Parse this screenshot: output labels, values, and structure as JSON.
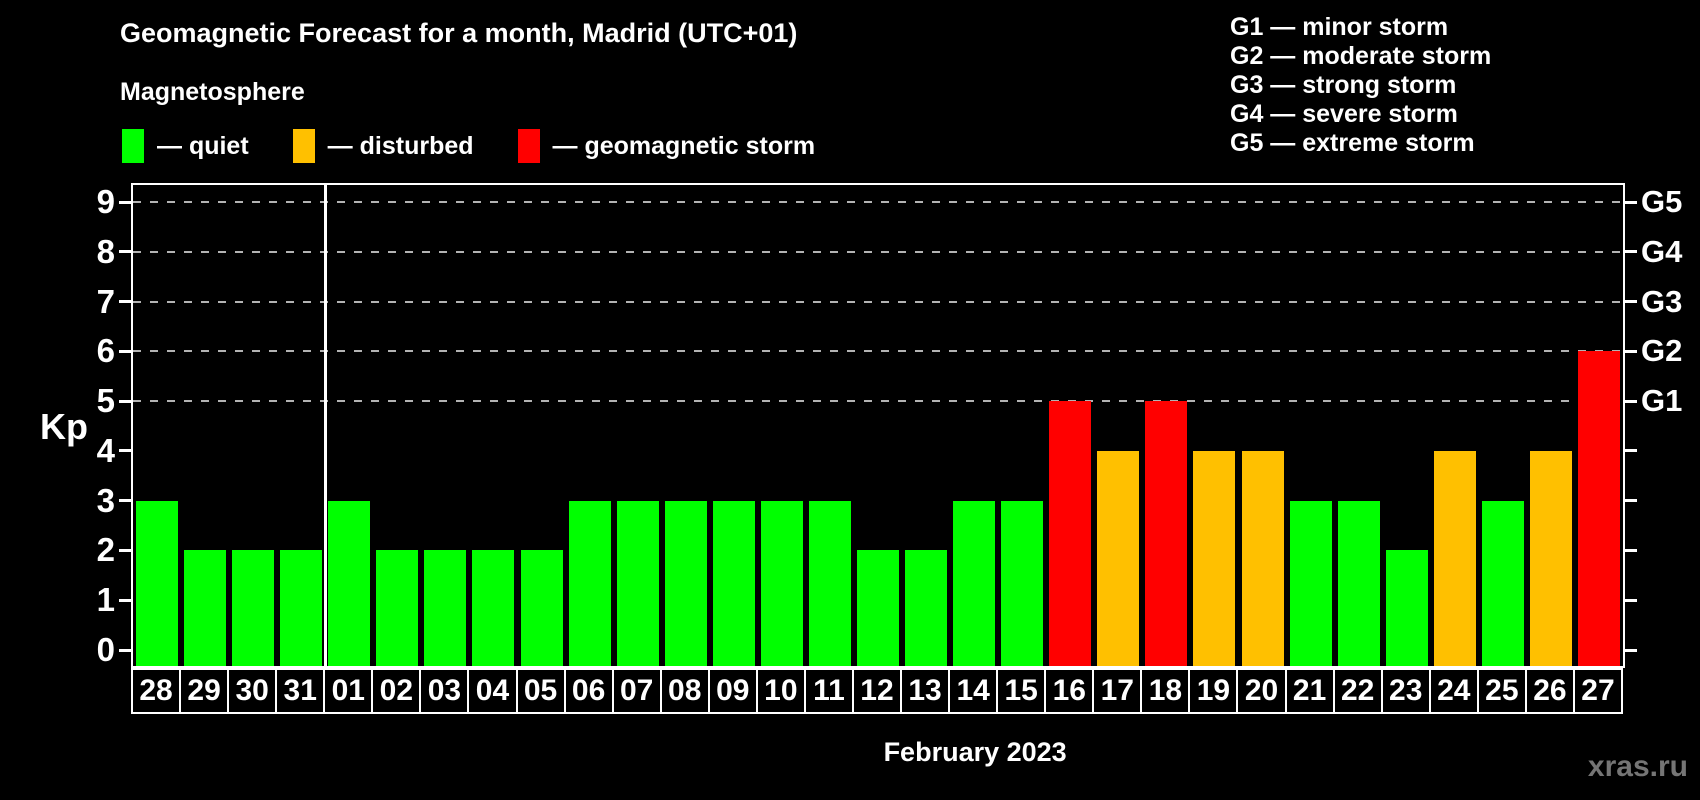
{
  "title": "Geomagnetic Forecast for a month, Madrid (UTC+01)",
  "subtitle": "Magnetosphere",
  "watermark": "xras.ru",
  "legend": {
    "dash": "—",
    "items": [
      {
        "key": "quiet",
        "label": "quiet",
        "color": "#00ff00"
      },
      {
        "key": "disturbed",
        "label": "disturbed",
        "color": "#ffc000"
      },
      {
        "key": "storm",
        "label": "geomagnetic storm",
        "color": "#ff0000"
      }
    ]
  },
  "g_scale": {
    "dash": "—",
    "items": [
      {
        "code": "G1",
        "desc": "minor storm",
        "kp": 5
      },
      {
        "code": "G2",
        "desc": "moderate storm",
        "kp": 6
      },
      {
        "code": "G3",
        "desc": "strong storm",
        "kp": 7
      },
      {
        "code": "G4",
        "desc": "severe storm",
        "kp": 8
      },
      {
        "code": "G5",
        "desc": "extreme storm",
        "kp": 9
      }
    ]
  },
  "chart_data": {
    "type": "bar",
    "title": "Geomagnetic Forecast for a month, Madrid (UTC+01)",
    "subtitle": "Magnetosphere",
    "ylabel": "Kp",
    "xlabel": "February 2023",
    "ylim": [
      0,
      9
    ],
    "y_ticks": [
      0,
      1,
      2,
      3,
      4,
      5,
      6,
      7,
      8,
      9
    ],
    "gridlines_at_kp": [
      5,
      6,
      7,
      8,
      9
    ],
    "grid": "dashed, only at storm levels G1-G5",
    "legend_position": "top-left",
    "month_separator_after_index": 3,
    "categories": [
      "28",
      "29",
      "30",
      "31",
      "01",
      "02",
      "03",
      "04",
      "05",
      "06",
      "07",
      "08",
      "09",
      "10",
      "11",
      "12",
      "13",
      "14",
      "15",
      "16",
      "17",
      "18",
      "19",
      "20",
      "21",
      "22",
      "23",
      "24",
      "25",
      "26",
      "27"
    ],
    "values": [
      3,
      2,
      2,
      2,
      3,
      2,
      2,
      2,
      2,
      3,
      3,
      3,
      3,
      3,
      3,
      2,
      2,
      3,
      3,
      5,
      4,
      5,
      4,
      4,
      3,
      3,
      2,
      4,
      3,
      4,
      6
    ],
    "statuses": [
      "quiet",
      "quiet",
      "quiet",
      "quiet",
      "quiet",
      "quiet",
      "quiet",
      "quiet",
      "quiet",
      "quiet",
      "quiet",
      "quiet",
      "quiet",
      "quiet",
      "quiet",
      "quiet",
      "quiet",
      "quiet",
      "quiet",
      "storm",
      "disturbed",
      "storm",
      "disturbed",
      "disturbed",
      "quiet",
      "quiet",
      "quiet",
      "disturbed",
      "quiet",
      "disturbed",
      "storm"
    ]
  },
  "colors": {
    "background": "#000000",
    "text": "#ffffff",
    "grid": "#b3b3b3",
    "watermark": "#757575",
    "quiet": "#00ff00",
    "disturbed": "#ffc000",
    "storm": "#ff0000"
  }
}
